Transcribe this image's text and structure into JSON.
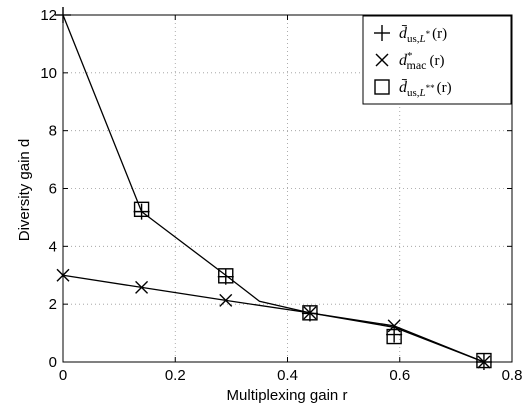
{
  "chart_data": {
    "type": "line",
    "xlabel": "Multiplexing gain r",
    "ylabel": "Diversity gain d",
    "xlim": [
      0,
      0.8
    ],
    "ylim": [
      0,
      12
    ],
    "xticks": [
      "0",
      "0.2",
      "0.4",
      "0.6",
      "0.8"
    ],
    "yticks": [
      "0",
      "2",
      "4",
      "6",
      "8",
      "10",
      "12"
    ],
    "grid": true,
    "legend_position": "top-right",
    "series": [
      {
        "name": "d̄us,L*(r)",
        "marker": "plus",
        "x": [
          0,
          0.14,
          0.29,
          0.44,
          0.59,
          0.75
        ],
        "y": [
          12,
          5.2,
          2.95,
          1.68,
          0.95,
          0
        ]
      },
      {
        "name": "d*mac(r)",
        "marker": "x",
        "x": [
          0,
          0.14,
          0.29,
          0.44,
          0.59,
          0.75
        ],
        "y": [
          3,
          2.58,
          2.13,
          1.7,
          1.25,
          0
        ]
      },
      {
        "name": "d̄us,L**(r)",
        "marker": "square",
        "x": [
          0.14,
          0.29,
          0.44,
          0.59,
          0.75
        ],
        "y": [
          5.28,
          2.98,
          1.7,
          0.88,
          0.05
        ]
      }
    ],
    "lines": [
      {
        "x": [
          0,
          0.14,
          0.29,
          0.35,
          0.44,
          0.59,
          0.75
        ],
        "y": [
          12,
          5.2,
          3.0,
          2.1,
          1.7,
          1.2,
          0
        ]
      },
      {
        "x": [
          0,
          0.14,
          0.29,
          0.44,
          0.59,
          0.75
        ],
        "y": [
          3,
          2.58,
          2.13,
          1.7,
          1.25,
          0
        ]
      }
    ],
    "legend_entries": [
      {
        "marker": "plus",
        "main": "d̄",
        "sub": "us,",
        "subvar": "L",
        "supstar": "*",
        "arg": "(r)"
      },
      {
        "marker": "x",
        "main": "d",
        "sub": "mac",
        "subvar": "",
        "supstar": "*",
        "arg": "(r)"
      },
      {
        "marker": "square",
        "main": "d̄",
        "sub": "us,",
        "subvar": "L",
        "supstar": "**",
        "arg": "(r)"
      }
    ]
  }
}
